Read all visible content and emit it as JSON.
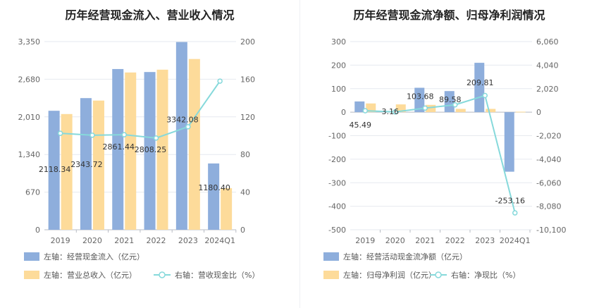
{
  "chart_data": [
    {
      "type": "bar",
      "title": "历年经营现金流入、营业收入情况",
      "categories": [
        "2019",
        "2020",
        "2021",
        "2022",
        "2023",
        "2024Q1"
      ],
      "y_left": {
        "ticks": [
          "0",
          "670",
          "1,340",
          "2,010",
          "2,680",
          "3,350"
        ],
        "ylim": [
          0,
          3350
        ]
      },
      "y_right": {
        "ticks": [
          "0",
          "40",
          "80",
          "120",
          "160",
          "200"
        ],
        "ylim": [
          0,
          200
        ]
      },
      "series": [
        {
          "name": "左轴：经营现金流入（亿元）",
          "type": "bar",
          "axis": "left",
          "color": "#8eaedc",
          "values": [
            2118.34,
            2343.72,
            2861.44,
            2808.25,
            3342.08,
            1180.4
          ],
          "labels": [
            "2118.34",
            "2343.72",
            "2861.44",
            "2808.25",
            "3342.08",
            "1180.40"
          ]
        },
        {
          "name": "左轴：营业总收入（亿元）",
          "type": "bar",
          "axis": "left",
          "color": "#fddb9a",
          "values": [
            2060,
            2300,
            2800,
            2850,
            3040,
            740
          ]
        },
        {
          "name": "右轴：营收现金比（%）",
          "type": "line",
          "axis": "right",
          "color": "#86d9db",
          "values": [
            102.5,
            100.5,
            101,
            97.5,
            109.5,
            158
          ]
        }
      ],
      "grid": true,
      "legend_position": "bottom-left"
    },
    {
      "type": "bar",
      "title": "历年经营现金流净额、归母净利润情况",
      "categories": [
        "2019",
        "2020",
        "2021",
        "2022",
        "2023",
        "2024Q1"
      ],
      "y_left": {
        "ticks": [
          "-500",
          "-400",
          "-300",
          "-200",
          "-100",
          "0",
          "100",
          "200",
          "300"
        ],
        "ylim": [
          -500,
          300
        ]
      },
      "y_right": {
        "ticks": [
          "-10,100",
          "-8,080",
          "-6,060",
          "-4,040",
          "-2,020",
          "0",
          "2,020",
          "4,040",
          "6,060"
        ],
        "ylim": [
          -10100,
          6060
        ]
      },
      "series": [
        {
          "name": "左轴：经营活动现金流净额（亿元）",
          "type": "bar",
          "axis": "left",
          "color": "#8eaedc",
          "values": [
            45.49,
            3.16,
            103.68,
            89.58,
            209.81,
            -253.16
          ],
          "labels": [
            "45.49",
            "3.16",
            "103.68",
            "89.58",
            "209.81",
            "-253.16"
          ]
        },
        {
          "name": "左轴：归母净利润（亿元）",
          "type": "bar",
          "axis": "left",
          "color": "#fddb9a",
          "values": [
            37,
            33,
            31,
            14,
            14,
            2
          ]
        },
        {
          "name": "右轴：净现比（%）",
          "type": "line",
          "axis": "right",
          "color": "#86d9db",
          "values": [
            120,
            20,
            350,
            630,
            1430,
            -8650
          ]
        }
      ],
      "grid": true,
      "legend_position": "bottom-left"
    }
  ]
}
